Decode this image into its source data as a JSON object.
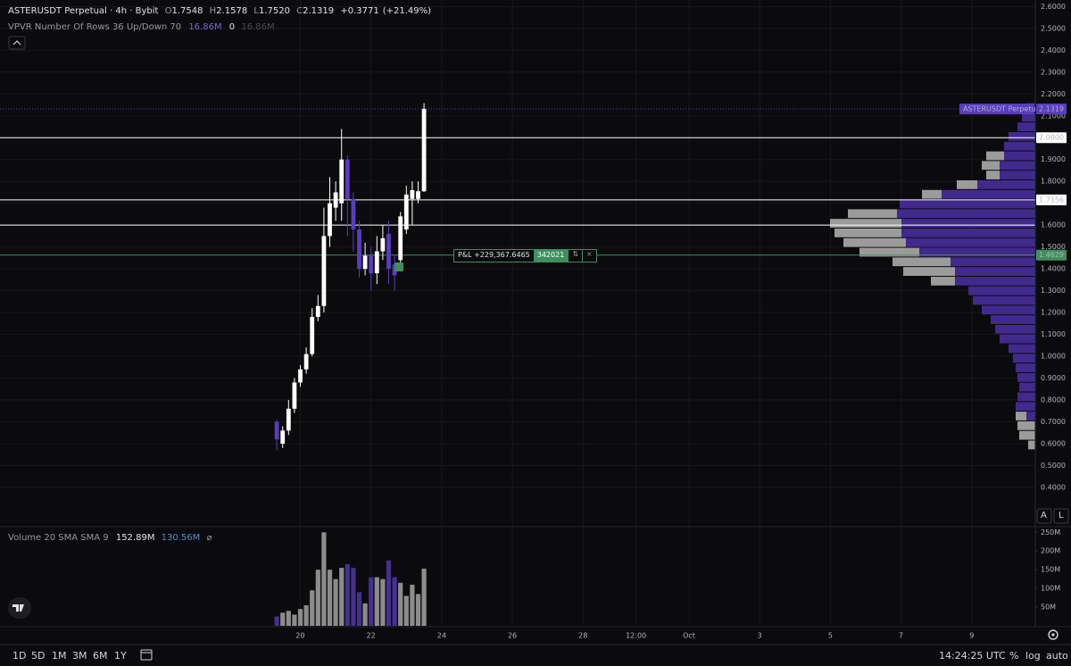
{
  "header": {
    "title": "ASTERUSDT Perpetual · 4h · Bybit",
    "open_label": "O",
    "open": "1.7548",
    "high_label": "H",
    "high": "2.1578",
    "low_label": "L",
    "low": "1.7520",
    "close_label": "C",
    "close": "2.1319",
    "change": "+0.3771",
    "change_pct": "(+21.49%)"
  },
  "indicators": {
    "vpvr": {
      "label": "VPVR Number Of Rows 36 Up/Down 70",
      "up": "16.86M",
      "total": "0",
      "down": "16.86M"
    },
    "volume": {
      "label": "Volume 20 SMA SMA 9",
      "value": "152.89M",
      "sma": "130.56M",
      "icon": "⌀"
    }
  },
  "position": {
    "pnl": "P&L +229,367.6465",
    "qty": "342021"
  },
  "axis_buttons": [
    "A",
    "L"
  ],
  "toolbar": {
    "ranges": [
      "1D",
      "5D",
      "1M",
      "3M",
      "6M",
      "1Y"
    ],
    "time": "14:24:25 UTC",
    "options": [
      "%",
      "log",
      "auto"
    ]
  },
  "chart_data": {
    "type": "candlestick",
    "x": [
      19.3333,
      19.5,
      19.6667,
      19.8333,
      20,
      20.1667,
      20.3333,
      20.5,
      20.6667,
      20.8333,
      21,
      21.1667,
      21.3333,
      21.5,
      21.6667,
      21.8333,
      22,
      22.1667,
      22.3333,
      22.5,
      22.6667,
      22.8333,
      23,
      23.1667,
      23.3333,
      23.5
    ],
    "open": [
      0.7,
      0.6,
      0.66,
      0.76,
      0.88,
      0.94,
      1.01,
      1.18,
      1.23,
      1.55,
      1.68,
      1.7,
      1.9,
      1.72,
      1.58,
      1.4,
      1.46,
      1.38,
      1.48,
      1.56,
      1.42,
      1.44,
      1.58,
      1.72,
      1.72,
      1.7548
    ],
    "high": [
      0.71,
      0.68,
      0.8,
      0.9,
      0.96,
      1.04,
      1.22,
      1.28,
      1.68,
      1.82,
      1.8,
      2.04,
      1.92,
      1.75,
      1.62,
      1.52,
      1.5,
      1.55,
      1.6,
      1.62,
      1.46,
      1.66,
      1.78,
      1.8,
      1.8,
      2.1578
    ],
    "low": [
      0.57,
      0.58,
      0.64,
      0.74,
      0.86,
      0.92,
      1.0,
      1.16,
      1.2,
      1.5,
      1.62,
      1.62,
      1.55,
      1.48,
      1.36,
      1.37,
      1.3,
      1.33,
      1.44,
      1.33,
      1.3,
      1.4,
      1.56,
      1.6,
      1.7,
      1.752
    ],
    "close": [
      0.62,
      0.66,
      0.76,
      0.88,
      0.94,
      1.01,
      1.18,
      1.23,
      1.55,
      1.7,
      1.75,
      1.9,
      1.72,
      1.58,
      1.4,
      1.46,
      1.38,
      1.48,
      1.54,
      1.4,
      1.37,
      1.64,
      1.74,
      1.76,
      1.755,
      2.1319
    ],
    "volume": [
      25,
      35,
      40,
      30,
      45,
      55,
      95,
      150,
      250,
      150,
      125,
      155,
      165,
      155,
      90,
      60,
      130,
      130,
      125,
      175,
      130,
      115,
      80,
      110,
      85,
      152.89
    ],
    "up_color": "#ffffff",
    "down_color": "#5a3cc0",
    "volume_up_color": "#8c8c8c",
    "volume_down_color": "#46308f",
    "last_price_label": "ASTERUSDT Perpetual",
    "last_price_color": "#5a3cc0",
    "xlim": [
      11.5,
      40.8
    ],
    "xticks": [
      20,
      22,
      24,
      26,
      28,
      {
        "value": 29.5,
        "label": "12:00"
      },
      {
        "value": 31,
        "label": "Oct"
      },
      {
        "value": 33,
        "label": "3"
      },
      {
        "value": 35,
        "label": "5"
      },
      {
        "value": 37,
        "label": "7"
      },
      {
        "value": 39,
        "label": "9"
      }
    ],
    "ylim": [
      0.22,
      2.63
    ],
    "yticks": [
      {
        "value": 0.4,
        "label": "0.4000"
      },
      {
        "value": 0.5,
        "label": "0.5000"
      },
      {
        "value": 0.6,
        "label": "0.6000"
      },
      {
        "value": 0.7,
        "label": "0.7000"
      },
      {
        "value": 0.8,
        "label": "0.8000"
      },
      {
        "value": 0.9,
        "label": "0.9000"
      },
      {
        "value": 1.0,
        "label": "1.0000"
      },
      {
        "value": 1.1,
        "label": "1.1000"
      },
      {
        "value": 1.2,
        "label": "1.2000"
      },
      {
        "value": 1.3,
        "label": "1.3000"
      },
      {
        "value": 1.4,
        "label": "1.4000"
      },
      {
        "value": 1.5,
        "label": "1.5000"
      },
      {
        "value": 1.6,
        "label": "1.6000"
      },
      {
        "value": 1.7,
        "label": "1.7000"
      },
      {
        "value": 1.8,
        "label": "1.8000"
      },
      {
        "value": 1.9,
        "label": "1.9000"
      },
      {
        "value": 2.0,
        "label": "2.0000"
      },
      {
        "value": 2.1,
        "label": "2.1000"
      },
      {
        "value": 2.2,
        "label": "2.2000"
      },
      {
        "value": 2.3,
        "label": "2.3000"
      },
      {
        "value": 2.4,
        "label": "2.4000"
      },
      {
        "value": 2.5,
        "label": "2.5000"
      },
      {
        "value": 2.6,
        "label": "2.6000"
      }
    ],
    "volume_ylim": [
      0,
      265
    ],
    "volume_ticks": [
      {
        "value": 50,
        "label": "50M"
      },
      {
        "value": 100,
        "label": "100M"
      },
      {
        "value": 150,
        "label": "150M"
      },
      {
        "value": 200,
        "label": "200M"
      },
      {
        "value": 250,
        "label": "250M"
      }
    ],
    "grid": true,
    "price_lines": [
      {
        "value": 2.0,
        "label": "2.0000",
        "color": "#ffffff"
      },
      {
        "value": 1.7156,
        "label": "1.7156",
        "color": "#ffffff"
      },
      {
        "value": 1.6,
        "color": "#ffffff"
      },
      {
        "value": 1.4629,
        "label": "1.4629",
        "color": "#3f8f5e"
      }
    ],
    "vpvr": {
      "up_color": "#4b2fa6",
      "down_color": "#b5b5b5",
      "up": [
        0,
        0,
        0,
        10,
        22,
        20,
        18,
        20,
        22,
        25,
        30,
        40,
        45,
        50,
        60,
        70,
        75,
        90,
        90,
        95,
        130,
        145,
        150,
        150,
        155,
        152,
        105,
        65,
        40,
        40,
        35,
        35,
        30,
        20,
        15,
        10
      ],
      "down": [
        8,
        18,
        20,
        12,
        0,
        0,
        0,
        0,
        0,
        0,
        0,
        0,
        0,
        0,
        0,
        0,
        0,
        27,
        58,
        65,
        67,
        70,
        75,
        80,
        55,
        0,
        22,
        23,
        15,
        20,
        20,
        0,
        0,
        0,
        0,
        0
      ]
    }
  }
}
